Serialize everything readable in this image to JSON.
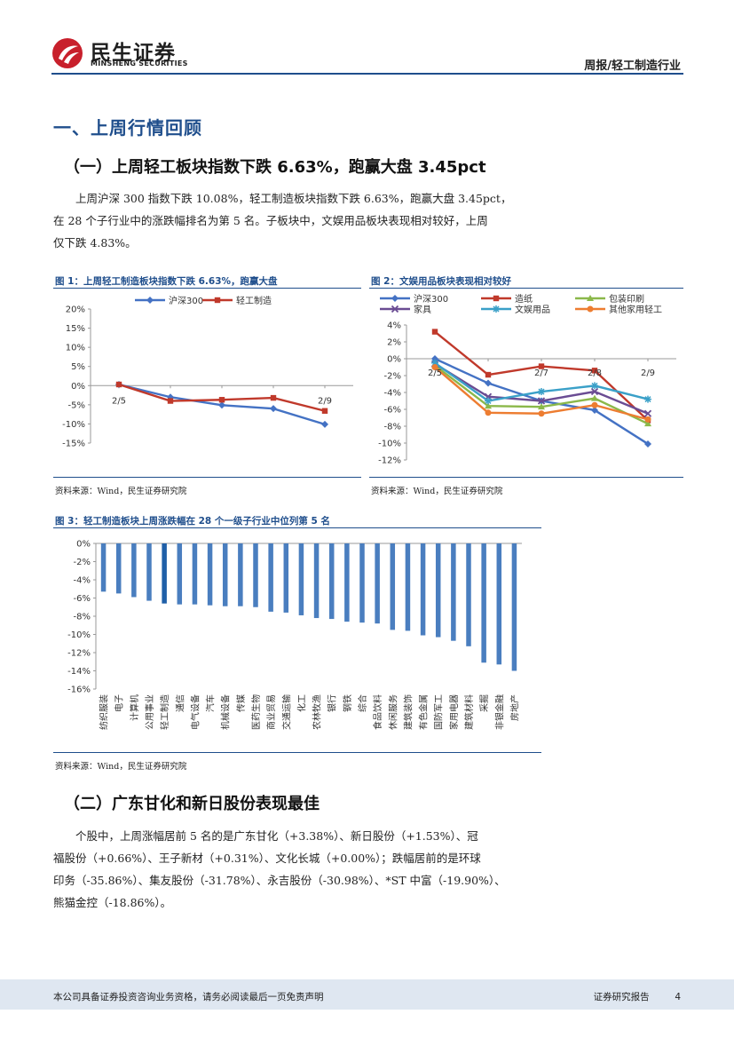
{
  "header": {
    "brand_cn": "民生证券",
    "brand_en": "MINSHENG SECURITIES",
    "report_type": "周报/轻工制造行业",
    "brand_color": "#c8202c",
    "accent_color": "#1f4e8c"
  },
  "section1": {
    "title": "一、上周行情回顾",
    "sub1": {
      "title": "（一）上周轻工板块指数下跌 6.63%，跑赢大盘 3.45pct",
      "para_lines": [
        "上周沪深 300 指数下跌 10.08%，轻工制造板块指数下跌 6.63%，跑赢大盘 3.45pct，",
        "在 28 个子行业中的涨跌幅排名为第 5 名。子板块中，文娱用品板块表现相对较好，上周",
        "仅下跌 4.83%。"
      ]
    },
    "sub2": {
      "title": "（二）广东甘化和新日股份表现最佳",
      "para_lines": [
        "个股中，上周涨幅居前 5 名的是广东甘化（+3.38%）、新日股份（+1.53%）、冠",
        "福股份（+0.66%）、王子新材（+0.31%）、文化长城（+0.00%）；跌幅居前的是环球",
        "印务（-35.86%）、集友股份（-31.78%）、永吉股份（-30.98%）、*ST 中富（-19.90%）、",
        "熊猫金控（-18.86%）。"
      ]
    }
  },
  "figures": {
    "fig1_title": "图 1：上周轻工制造板块指数下跌 6.63%，跑赢大盘",
    "fig2_title": "图 2：文娱用品板块表现相对较好",
    "fig3_title": "图 3：轻工制造板块上周涨跌幅在 28 个一级子行业中位列第 5 名",
    "source": "资料来源：Wind，民生证券研究院"
  },
  "chart_data": [
    {
      "type": "line",
      "x": [
        "2/5",
        "2/6",
        "2/7",
        "2/8",
        "2/9"
      ],
      "x_labels_shown": [
        "2/5",
        "2/9"
      ],
      "series": [
        {
          "name": "沪深300",
          "color": "#4472c4",
          "values": [
            0.3,
            -3.0,
            -5.1,
            -6.0,
            -10.1
          ]
        },
        {
          "name": "轻工制造",
          "color": "#c0392b",
          "values": [
            0.3,
            -4.0,
            -3.7,
            -3.2,
            -6.6
          ]
        }
      ],
      "ylim": [
        -15,
        20
      ],
      "yticks": [
        "20%",
        "15%",
        "10%",
        "5%",
        "0%",
        "-5%",
        "-10%",
        "-15%"
      ],
      "legend": "top"
    },
    {
      "type": "line",
      "x": [
        "2/5",
        "2/6",
        "2/7",
        "2/8",
        "2/9"
      ],
      "x_labels_shown": [
        "2/5",
        "2/7",
        "2/8",
        "2/9"
      ],
      "series": [
        {
          "name": "沪深300",
          "color": "#4472c4",
          "values": [
            0.0,
            -2.9,
            -5.0,
            -6.1,
            -10.1
          ]
        },
        {
          "name": "造纸",
          "color": "#c0392b",
          "values": [
            3.2,
            -1.9,
            -0.9,
            -1.4,
            -7.3
          ]
        },
        {
          "name": "包装印刷",
          "color": "#8bb84a",
          "values": [
            -0.8,
            -5.6,
            -5.7,
            -4.7,
            -7.7
          ]
        },
        {
          "name": "家具",
          "color": "#6a4c93",
          "values": [
            -0.6,
            -4.5,
            -5.0,
            -3.9,
            -6.5
          ]
        },
        {
          "name": "文娱用品",
          "color": "#3aa0c8",
          "values": [
            -0.5,
            -5.0,
            -3.9,
            -3.2,
            -4.8
          ]
        },
        {
          "name": "其他家用轻工",
          "color": "#ed7d31",
          "values": [
            -1.0,
            -6.4,
            -6.5,
            -5.5,
            -7.2
          ]
        }
      ],
      "ylim": [
        -12,
        4
      ],
      "yticks": [
        "4%",
        "2%",
        "0%",
        "-2%",
        "-4%",
        "-6%",
        "-8%",
        "-10%",
        "-12%"
      ],
      "legend": "top"
    },
    {
      "type": "bar",
      "categories": [
        "纺织服装",
        "电子",
        "计算机",
        "公用事业",
        "轻工制造",
        "通信",
        "电气设备",
        "汽车",
        "机械设备",
        "传媒",
        "医药生物",
        "商业贸易",
        "交通运输",
        "化工",
        "农林牧渔",
        "银行",
        "钢铁",
        "综合",
        "食品饮料",
        "休闲服务",
        "建筑装饰",
        "有色金属",
        "国防军工",
        "家用电器",
        "建筑材料",
        "采掘",
        "非银金融",
        "房地产"
      ],
      "values": [
        -5.3,
        -5.5,
        -5.9,
        -6.3,
        -6.6,
        -6.7,
        -6.7,
        -6.8,
        -6.9,
        -6.9,
        -7.0,
        -7.5,
        -7.6,
        -7.9,
        -8.2,
        -8.3,
        -8.6,
        -8.7,
        -8.8,
        -9.5,
        -9.6,
        -10.1,
        -10.3,
        -10.7,
        -11.3,
        -13.1,
        -13.3,
        -14.0
      ],
      "highlight": "轻工制造",
      "ylim": [
        -16,
        0
      ],
      "yticks": [
        "0%",
        "-2%",
        "-4%",
        "-6%",
        "-8%",
        "-10%",
        "-12%",
        "-14%",
        "-16%"
      ],
      "bar_color": "#4a7ebf",
      "highlight_color": "#1f5fa8"
    }
  ],
  "footer": {
    "disclaimer": "本公司具备证券投资咨询业务资格，请务必阅读最后一页免责声明",
    "doc_type": "证券研究报告",
    "page_number": "4"
  }
}
